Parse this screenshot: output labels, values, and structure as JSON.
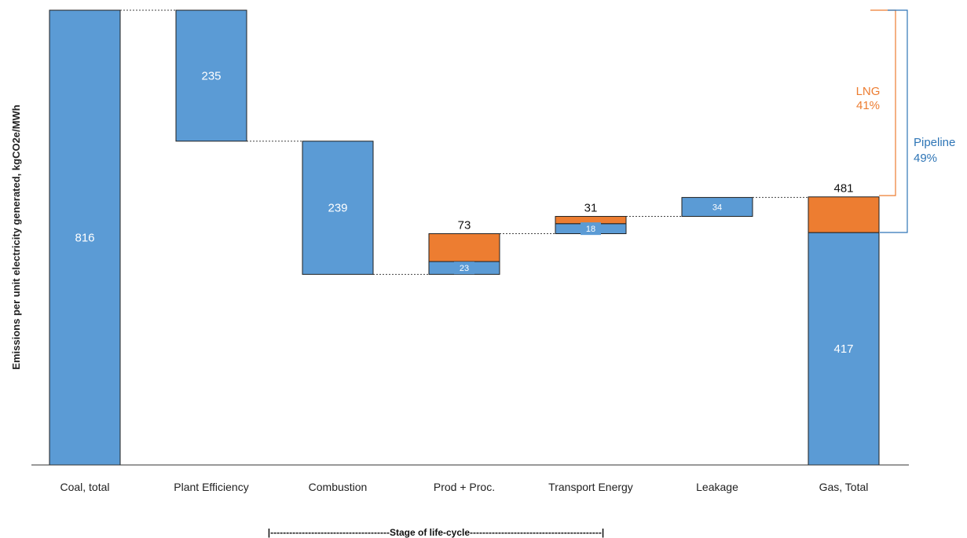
{
  "chart_data": {
    "type": "bar",
    "subtype": "waterfall",
    "ylabel": "Emissions per unit electricity generated, kgCO2e/MWh",
    "xlabel": "|--------------------------------------Stage of life-cycle------------------------------------------|",
    "categories": [
      "Coal, total",
      "Plant Efficiency",
      "Combustion",
      "Prod + Proc.",
      "Transport Energy",
      "Leakage",
      "Gas, Total"
    ],
    "steps": [
      {
        "category": "Coal, total",
        "from": 0,
        "to": 816,
        "pipeline": 816,
        "lng_extra": 0,
        "label": "816",
        "top_label": ""
      },
      {
        "category": "Plant Efficiency",
        "from": 581,
        "to": 816,
        "pipeline": 235,
        "lng_extra": 0,
        "label": "235",
        "top_label": ""
      },
      {
        "category": "Combustion",
        "from": 342,
        "to": 581,
        "pipeline": 239,
        "lng_extra": 0,
        "label": "239",
        "top_label": ""
      },
      {
        "category": "Prod + Proc.",
        "from": 342,
        "to": 415,
        "pipeline": 23,
        "lng_extra": 50,
        "label": "23",
        "top_label": "73"
      },
      {
        "category": "Transport Energy",
        "from": 415,
        "to": 446,
        "pipeline": 18,
        "lng_extra": 13,
        "label": "18",
        "top_label": "31"
      },
      {
        "category": "Leakage",
        "from": 446,
        "to": 480,
        "pipeline": 34,
        "lng_extra": 0,
        "label": "34",
        "top_label": ""
      },
      {
        "category": "Gas, Total",
        "from": 0,
        "to": 481,
        "pipeline": 417,
        "lng_extra": 64,
        "label": "417",
        "top_label": "481"
      }
    ],
    "annotations": [
      {
        "name": "LNG",
        "value": "41%",
        "color": "#ed7d31"
      },
      {
        "name": "Pipeline",
        "value": "49%",
        "color": "#2e75b6"
      }
    ],
    "ylim": [
      0,
      816
    ],
    "grid": false,
    "colors": {
      "pipeline": "#5b9bd5",
      "lng": "#ed7d31",
      "pipeline_bracket": "#2e75b6",
      "lng_text": "#ed7d31"
    }
  }
}
